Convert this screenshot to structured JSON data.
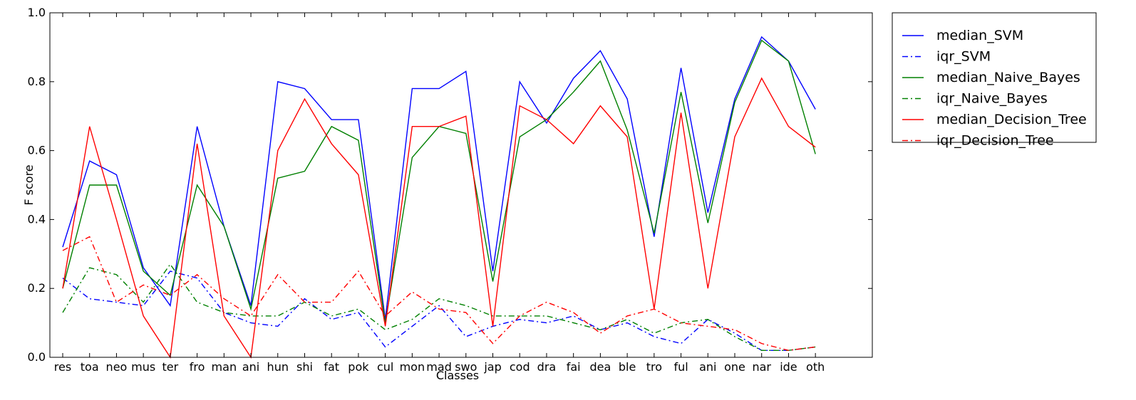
{
  "chart_data": {
    "type": "line",
    "xlabel": "Classes",
    "ylabel": "F score",
    "ylim": [
      0,
      1.0
    ],
    "yticks": [
      "0.0",
      "0.2",
      "0.4",
      "0.6",
      "0.8",
      "1.0"
    ],
    "legend_position": "outside-top-right",
    "grid": false,
    "categories": [
      "res",
      "toa",
      "neo",
      "mus",
      "ter",
      "fro",
      "man",
      "ani",
      "hun",
      "shi",
      "fat",
      "pok",
      "cul",
      "mon",
      "mad",
      "swo",
      "jap",
      "cod",
      "dra",
      "fai",
      "dea",
      "ble",
      "tro",
      "ful",
      "ani",
      "one",
      "nar",
      "ide",
      "oth"
    ],
    "series": [
      {
        "name": "median_SVM",
        "color": "#0000ff",
        "style": "solid",
        "values": [
          0.32,
          0.57,
          0.53,
          0.26,
          0.15,
          0.67,
          0.38,
          0.15,
          0.8,
          0.78,
          0.69,
          0.69,
          0.11,
          0.78,
          0.78,
          0.83,
          0.25,
          0.8,
          0.68,
          0.81,
          0.89,
          0.75,
          0.35,
          0.84,
          0.42,
          0.75,
          0.93,
          0.86,
          0.72
        ]
      },
      {
        "name": "iqr_SVM",
        "color": "#0000ff",
        "style": "dashdot",
        "values": [
          0.23,
          0.17,
          0.16,
          0.15,
          0.25,
          0.23,
          0.13,
          0.1,
          0.09,
          0.17,
          0.11,
          0.13,
          0.03,
          0.09,
          0.15,
          0.06,
          0.09,
          0.11,
          0.1,
          0.12,
          0.08,
          0.1,
          0.06,
          0.04,
          0.11,
          0.07,
          0.02,
          0.02,
          0.03
        ]
      },
      {
        "name": "median_Naive_Bayes",
        "color": "#008000",
        "style": "solid",
        "values": [
          0.2,
          0.5,
          0.5,
          0.25,
          0.18,
          0.5,
          0.38,
          0.14,
          0.52,
          0.54,
          0.67,
          0.63,
          0.1,
          0.58,
          0.67,
          0.65,
          0.22,
          0.64,
          0.69,
          0.77,
          0.86,
          0.66,
          0.36,
          0.77,
          0.39,
          0.74,
          0.92,
          0.86,
          0.59
        ]
      },
      {
        "name": "iqr_Naive_Bayes",
        "color": "#008000",
        "style": "dashdot",
        "values": [
          0.13,
          0.26,
          0.24,
          0.16,
          0.27,
          0.16,
          0.13,
          0.12,
          0.12,
          0.16,
          0.12,
          0.14,
          0.08,
          0.11,
          0.17,
          0.15,
          0.12,
          0.12,
          0.12,
          0.1,
          0.08,
          0.11,
          0.07,
          0.1,
          0.11,
          0.06,
          0.02,
          0.02,
          0.03
        ]
      },
      {
        "name": "median_Decision_Tree",
        "color": "#ff0000",
        "style": "solid",
        "values": [
          0.2,
          0.67,
          0.4,
          0.12,
          0.0,
          0.62,
          0.12,
          0.0,
          0.6,
          0.75,
          0.62,
          0.53,
          0.09,
          0.67,
          0.67,
          0.7,
          0.09,
          0.73,
          0.69,
          0.62,
          0.73,
          0.64,
          0.14,
          0.71,
          0.2,
          0.64,
          0.81,
          0.67,
          0.61
        ]
      },
      {
        "name": "iqr_Decision_Tree",
        "color": "#ff0000",
        "style": "dashdot",
        "values": [
          0.31,
          0.35,
          0.16,
          0.21,
          0.18,
          0.24,
          0.17,
          0.12,
          0.24,
          0.16,
          0.16,
          0.25,
          0.12,
          0.19,
          0.14,
          0.13,
          0.04,
          0.12,
          0.16,
          0.13,
          0.07,
          0.12,
          0.14,
          0.1,
          0.09,
          0.08,
          0.04,
          0.02,
          0.03
        ]
      }
    ]
  }
}
